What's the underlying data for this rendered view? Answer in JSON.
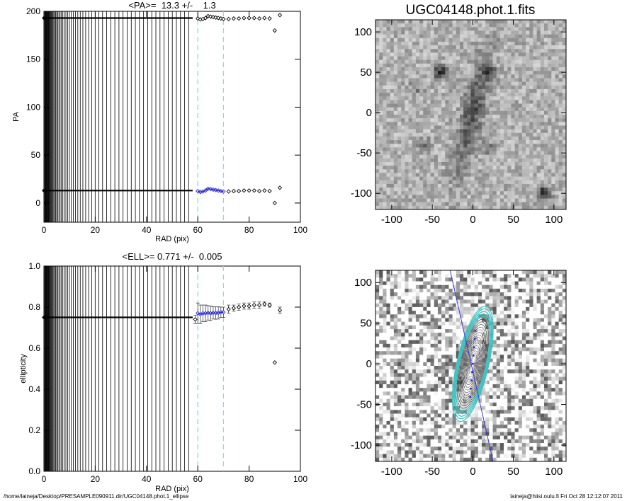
{
  "footer": {
    "left": "/home/laineja/Desktop/PRESAMPLE090911.dir/UGC04148.phot.1_ellipse",
    "right": "laineja@hiisi.oulu.fi  Fri Oct 28 12:12:07 2011"
  },
  "colors": {
    "marker": "#000000",
    "fit_marker": "#2a2ac8",
    "dashed": "#7fe0e0",
    "ellipse": "#40c0c0",
    "axis_line": "#3a3ae0"
  },
  "chart_data": [
    {
      "type": "scatter",
      "title": "<PA>=  13.3 +/-    1.3",
      "xlabel": "RAD (pix)",
      "ylabel": "PA",
      "xlim": [
        0,
        100
      ],
      "ylim": [
        -20,
        200
      ],
      "xticks": [
        0,
        20,
        40,
        60,
        80,
        100
      ],
      "yticks": [
        0,
        50,
        100,
        150,
        200
      ],
      "fit_range": [
        60,
        70
      ],
      "series": [
        {
          "x": [
            60,
            61,
            62,
            63,
            64,
            65,
            66,
            67,
            68,
            69,
            70,
            72,
            74,
            76,
            78,
            80,
            82,
            84,
            86,
            88,
            92
          ],
          "y": [
            12.5,
            11.5,
            12,
            13,
            15,
            14.5,
            14,
            13.5,
            13,
            12.5,
            12,
            12,
            12.5,
            12.5,
            13,
            13,
            13,
            12.5,
            13,
            12.5,
            16
          ]
        },
        {
          "x": [
            60,
            61,
            62,
            63,
            64,
            65,
            66,
            67,
            68,
            69,
            70,
            72,
            74,
            76,
            78,
            80,
            82,
            84,
            86,
            88,
            92
          ],
          "y": [
            192.5,
            191.5,
            192,
            193,
            195,
            194.5,
            194,
            193.5,
            193,
            192.5,
            192,
            192,
            192.5,
            192.5,
            193,
            193,
            193,
            192.5,
            193,
            192.5,
            196
          ]
        },
        {
          "x": [
            90,
            90
          ],
          "y": [
            0,
            180
          ]
        }
      ]
    },
    {
      "type": "scatter",
      "title": "<ELL>= 0.771 +/-  0.005",
      "xlabel": "RAD (pix)",
      "ylabel": "ellipticity",
      "xlim": [
        0,
        100
      ],
      "ylim": [
        0,
        1
      ],
      "xticks": [
        0,
        20,
        40,
        60,
        80,
        100
      ],
      "yticks": [
        0.0,
        0.2,
        0.4,
        0.6,
        0.8,
        1.0
      ],
      "fit_range": [
        60,
        70
      ],
      "series": [
        {
          "x": [
            59,
            60,
            61,
            62,
            63,
            64,
            65,
            66,
            67,
            68,
            69,
            70,
            72,
            74,
            76,
            78,
            80,
            82,
            84,
            86,
            88,
            92
          ],
          "y": [
            0.74,
            0.77,
            0.765,
            0.77,
            0.77,
            0.772,
            0.77,
            0.772,
            0.771,
            0.772,
            0.775,
            0.775,
            0.79,
            0.795,
            0.8,
            0.805,
            0.805,
            0.81,
            0.81,
            0.815,
            0.81,
            0.785
          ],
          "err": [
            0.02,
            0.05,
            0.045,
            0.04,
            0.04,
            0.035,
            0.035,
            0.03,
            0.03,
            0.03,
            0.025,
            0.025,
            0.02,
            0.015,
            0.015,
            0.015,
            0.015,
            0.015,
            0.015,
            0.01,
            0.01,
            0.015
          ]
        },
        {
          "x": [
            90
          ],
          "y": [
            0.53
          ]
        }
      ]
    },
    {
      "type": "heatmap",
      "title": "UGC04148.phot.1.fits",
      "xlim": [
        -120,
        115
      ],
      "ylim": [
        -120,
        115
      ],
      "xticks": [
        -100,
        -50,
        0,
        50,
        100
      ],
      "yticks": [
        -100,
        -50,
        0,
        50,
        100
      ]
    },
    {
      "type": "heatmap",
      "title": "",
      "xlim": [
        -120,
        115
      ],
      "ylim": [
        -120,
        115
      ],
      "xticks": [
        -100,
        -50,
        0,
        50,
        100
      ],
      "yticks": [
        -100,
        -50,
        0,
        50,
        100
      ]
    }
  ]
}
